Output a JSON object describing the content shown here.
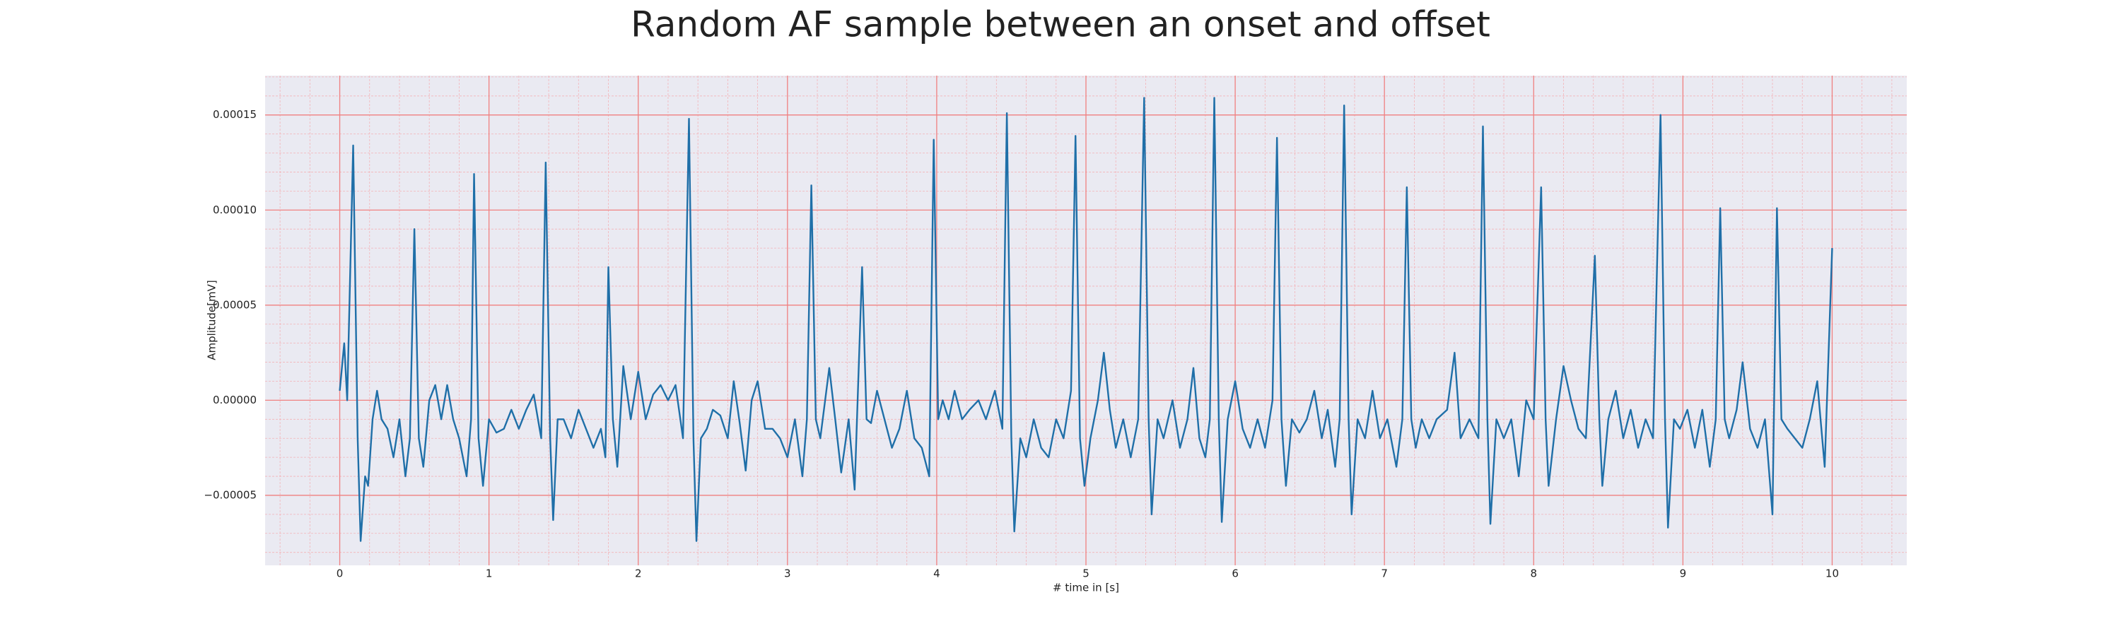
{
  "chart_data": {
    "type": "line",
    "title": "Random AF sample between an onset and offset",
    "xlabel": "# time in [s]",
    "ylabel": "Amplitude[mV]",
    "color": "#1f6fa8",
    "grid": true,
    "xlim": [
      -0.5,
      10.5
    ],
    "ylim": [
      -8.68e-05,
      0.0001707
    ],
    "xticks": [
      0,
      1,
      2,
      3,
      4,
      5,
      6,
      7,
      8,
      9,
      10
    ],
    "yticks": [
      {
        "value": -5e-05,
        "label": "−0.00005"
      },
      {
        "value": 0,
        "label": "0.00000"
      },
      {
        "value": 5e-05,
        "label": "0.00005"
      },
      {
        "value": 0.0001,
        "label": "0.00010"
      },
      {
        "value": 0.00015,
        "label": "0.00015"
      }
    ],
    "x": [
      0,
      0.03,
      0.05,
      0.09,
      0.12,
      0.14,
      0.17,
      0.19,
      0.22,
      0.25,
      0.28,
      0.32,
      0.36,
      0.4,
      0.44,
      0.47,
      0.5,
      0.53,
      0.56,
      0.6,
      0.64,
      0.68,
      0.72,
      0.76,
      0.8,
      0.85,
      0.88,
      0.9,
      0.93,
      0.96,
      1.0,
      1.05,
      1.1,
      1.15,
      1.2,
      1.25,
      1.3,
      1.35,
      1.38,
      1.41,
      1.43,
      1.46,
      1.5,
      1.55,
      1.6,
      1.65,
      1.7,
      1.75,
      1.78,
      1.8,
      1.83,
      1.86,
      1.9,
      1.95,
      2.0,
      2.05,
      2.1,
      2.15,
      2.2,
      2.25,
      2.3,
      2.34,
      2.37,
      2.39,
      2.42,
      2.46,
      2.5,
      2.55,
      2.6,
      2.64,
      2.68,
      2.72,
      2.76,
      2.8,
      2.85,
      2.9,
      2.95,
      3.0,
      3.05,
      3.1,
      3.13,
      3.16,
      3.19,
      3.22,
      3.28,
      3.32,
      3.36,
      3.41,
      3.45,
      3.5,
      3.53,
      3.56,
      3.6,
      3.65,
      3.7,
      3.75,
      3.8,
      3.85,
      3.9,
      3.95,
      3.98,
      4.01,
      4.04,
      4.08,
      4.12,
      4.17,
      4.22,
      4.28,
      4.33,
      4.39,
      4.44,
      4.47,
      4.5,
      4.52,
      4.56,
      4.6,
      4.65,
      4.7,
      4.75,
      4.8,
      4.85,
      4.9,
      4.93,
      4.96,
      4.99,
      5.03,
      5.08,
      5.12,
      5.16,
      5.2,
      5.25,
      5.3,
      5.35,
      5.39,
      5.42,
      5.44,
      5.48,
      5.52,
      5.58,
      5.63,
      5.68,
      5.72,
      5.76,
      5.8,
      5.83,
      5.86,
      5.89,
      5.91,
      5.95,
      6.0,
      6.05,
      6.1,
      6.15,
      6.2,
      6.25,
      6.28,
      6.31,
      6.34,
      6.38,
      6.43,
      6.48,
      6.53,
      6.58,
      6.62,
      6.67,
      6.7,
      6.73,
      6.76,
      6.78,
      6.82,
      6.87,
      6.92,
      6.97,
      7.02,
      7.08,
      7.12,
      7.15,
      7.18,
      7.21,
      7.25,
      7.3,
      7.35,
      7.42,
      7.47,
      7.51,
      7.57,
      7.63,
      7.66,
      7.69,
      7.71,
      7.75,
      7.8,
      7.85,
      7.9,
      7.95,
      8.0,
      8.05,
      8.08,
      8.1,
      8.15,
      8.2,
      8.25,
      8.3,
      8.35,
      8.41,
      8.44,
      8.46,
      8.5,
      8.55,
      8.6,
      8.65,
      8.7,
      8.75,
      8.8,
      8.85,
      8.88,
      8.9,
      8.94,
      8.98,
      9.03,
      9.08,
      9.13,
      9.18,
      9.22,
      9.25,
      9.28,
      9.31,
      9.36,
      9.4,
      9.45,
      9.5,
      9.55,
      9.6,
      9.63,
      9.66,
      9.7,
      9.75,
      9.8,
      9.85,
      9.9,
      9.95,
      10.0
    ],
    "values": [
      5e-06,
      3e-05,
      0,
      0.000134,
      -2e-05,
      -7.4e-05,
      -4e-05,
      -4.5e-05,
      -1e-05,
      5e-06,
      -1e-05,
      -1.5e-05,
      -3e-05,
      -1e-05,
      -4e-05,
      -2e-05,
      9e-05,
      -2e-05,
      -3.5e-05,
      0,
      8e-06,
      -1e-05,
      8e-06,
      -1e-05,
      -2e-05,
      -4e-05,
      -1e-05,
      0.000119,
      -2e-05,
      -4.5e-05,
      -1e-05,
      -1.7e-05,
      -1.5e-05,
      -5e-06,
      -1.5e-05,
      -5e-06,
      3e-06,
      -2e-05,
      0.000125,
      -2e-05,
      -6.3e-05,
      -1e-05,
      -1e-05,
      -2e-05,
      -5e-06,
      -1.5e-05,
      -2.5e-05,
      -1.5e-05,
      -3e-05,
      7e-05,
      -1e-05,
      -3.5e-05,
      1.8e-05,
      -1e-05,
      1.5e-05,
      -1e-05,
      3e-06,
      8e-06,
      0,
      8e-06,
      -2e-05,
      0.000148,
      -2e-05,
      -7.4e-05,
      -2e-05,
      -1.5e-05,
      -5e-06,
      -8e-06,
      -2e-05,
      1e-05,
      -1.2e-05,
      -3.7e-05,
      0,
      1e-05,
      -1.5e-05,
      -1.5e-05,
      -2e-05,
      -3e-05,
      -1e-05,
      -4e-05,
      -1e-05,
      0.000113,
      -1e-05,
      -2e-05,
      1.7e-05,
      -1e-05,
      -3.8e-05,
      -1e-05,
      -4.7e-05,
      7e-05,
      -1e-05,
      -1.2e-05,
      5e-06,
      -1e-05,
      -2.5e-05,
      -1.5e-05,
      5e-06,
      -2e-05,
      -2.5e-05,
      -4e-05,
      0.000137,
      -1e-05,
      0,
      -1e-05,
      5e-06,
      -1e-05,
      -5e-06,
      0,
      -1e-05,
      5e-06,
      -1.5e-05,
      0.000151,
      -2e-05,
      -6.9e-05,
      -2e-05,
      -3e-05,
      -1e-05,
      -2.5e-05,
      -3e-05,
      -1e-05,
      -2e-05,
      5e-06,
      0.000139,
      -2e-05,
      -4.5e-05,
      -2e-05,
      0,
      2.5e-05,
      -5e-06,
      -2.5e-05,
      -1e-05,
      -3e-05,
      -1e-05,
      0.000159,
      -1e-05,
      -6e-05,
      -1e-05,
      -2e-05,
      0,
      -2.5e-05,
      -1e-05,
      1.7e-05,
      -2e-05,
      -3e-05,
      -1e-05,
      0.000159,
      -1e-05,
      -6.4e-05,
      -1e-05,
      1e-05,
      -1.5e-05,
      -2.5e-05,
      -1e-05,
      -2.5e-05,
      0,
      0.000138,
      -1e-05,
      -4.5e-05,
      -1e-05,
      -1.7e-05,
      -1e-05,
      5e-06,
      -2e-05,
      -5e-06,
      -3.5e-05,
      -1e-05,
      0.000155,
      -1e-05,
      -6e-05,
      -1e-05,
      -2e-05,
      5e-06,
      -2e-05,
      -1e-05,
      -3.5e-05,
      -1e-05,
      0.000112,
      -1e-05,
      -2.5e-05,
      -1e-05,
      -2e-05,
      -1e-05,
      -5e-06,
      2.5e-05,
      -2e-05,
      -1e-05,
      -2e-05,
      0.000144,
      -1e-05,
      -6.5e-05,
      -1e-05,
      -2e-05,
      -1e-05,
      -4e-05,
      0,
      -1e-05,
      0.000112,
      -1e-05,
      -4.5e-05,
      -1e-05,
      1.8e-05,
      0,
      -1.5e-05,
      -2e-05,
      7.6e-05,
      -1e-05,
      -4.5e-05,
      -1e-05,
      5e-06,
      -2e-05,
      -5e-06,
      -2.5e-05,
      -1e-05,
      -2e-05,
      0.00015,
      -1e-05,
      -6.7e-05,
      -1e-05,
      -1.5e-05,
      -5e-06,
      -2.5e-05,
      -5e-06,
      -3.5e-05,
      -1e-05,
      0.000101,
      -1e-05,
      -2e-05,
      -5e-06,
      2e-05,
      -1.5e-05,
      -2.5e-05,
      -1e-05,
      -6e-05,
      0.000101,
      -1e-05,
      -1.5e-05,
      -2e-05,
      -2.5e-05,
      -1e-05,
      1e-05,
      -3.5e-05,
      8e-05
    ]
  }
}
